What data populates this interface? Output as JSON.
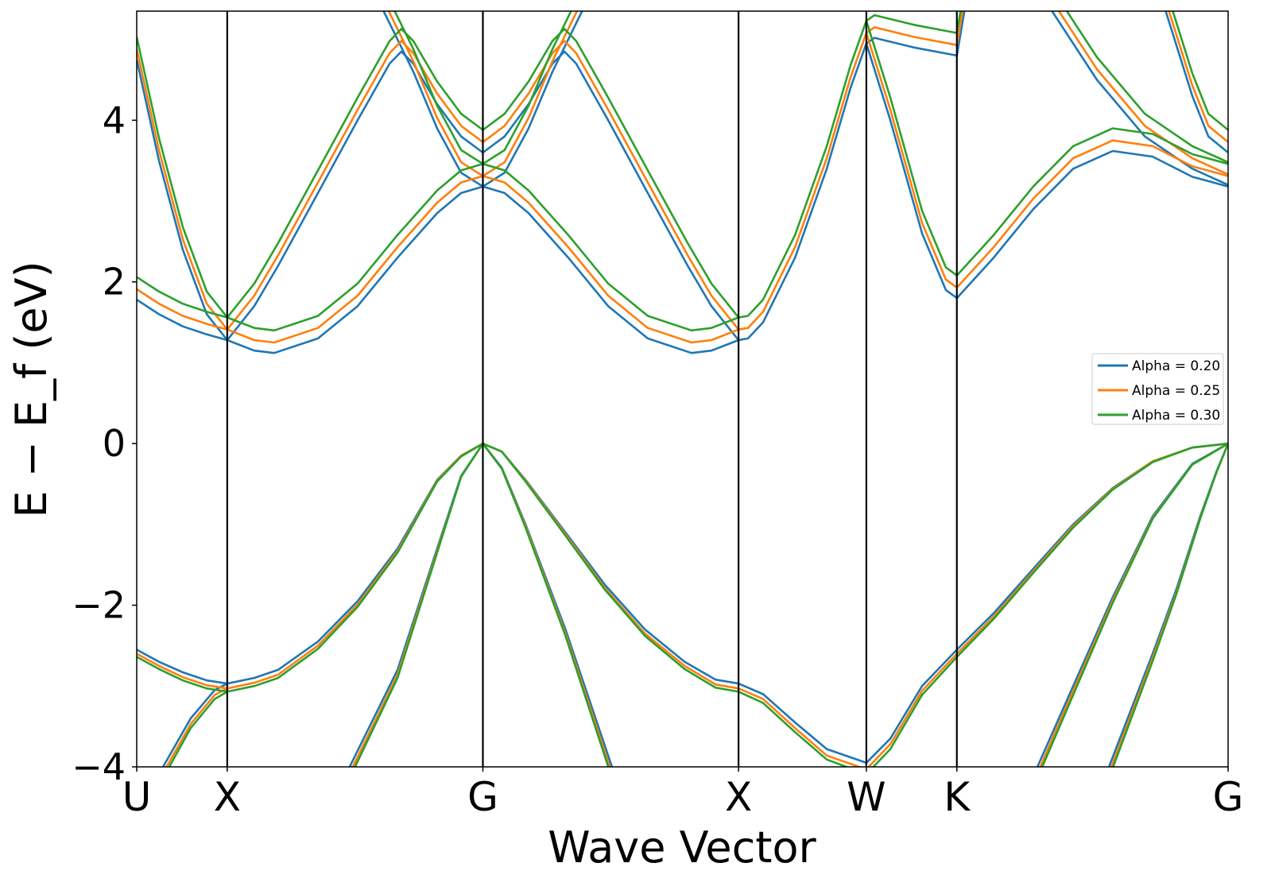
{
  "chart_data": {
    "type": "line",
    "title": "",
    "xlabel": "Wave Vector",
    "ylabel": "E − E_f (eV)",
    "ylim": [
      -4,
      5.35
    ],
    "xlim": [
      0,
      4.269
    ],
    "yticks": [
      -4,
      -2,
      0,
      2,
      4
    ],
    "ytick_labels": [
      "−4",
      "−2",
      "0",
      "2",
      "4"
    ],
    "high_symmetry_points": [
      {
        "label": "U",
        "k": 0
      },
      {
        "label": "X",
        "k": 0.354
      },
      {
        "label": "G",
        "k": 1.354
      },
      {
        "label": "X",
        "k": 2.354
      },
      {
        "label": "W",
        "k": 2.854
      },
      {
        "label": "K",
        "k": 3.208
      },
      {
        "label": "G",
        "k": 4.269
      }
    ],
    "grid": false,
    "legend_position": "center-right",
    "bands_k": {
      "v_heavy": [
        0,
        0.087,
        0.18,
        0.274,
        0.354,
        0.46,
        0.553,
        0.709,
        0.864,
        1.02,
        1.175,
        1.269,
        1.354,
        1.428,
        1.521,
        1.677,
        1.832,
        1.988,
        2.143,
        2.264,
        2.354,
        2.45,
        2.575,
        2.699,
        2.854,
        2.948,
        3.072,
        3.208,
        3.352,
        3.507,
        3.663,
        3.818,
        3.974,
        4.129,
        4.269
      ],
      "v_light_ux": [
        0,
        0.103,
        0.211,
        0.305,
        0.354
      ],
      "v_light_xg": [
        0.833,
        1.02,
        1.175,
        1.269,
        1.354
      ],
      "v_light_gx": [
        1.354,
        1.428,
        1.521,
        1.677,
        1.859
      ],
      "v_kg_a": [
        3.523,
        3.663,
        3.818,
        3.974,
        4.129,
        4.269
      ],
      "v_kg_b": [
        3.803,
        3.974,
        4.067,
        4.16,
        4.223,
        4.269
      ],
      "c_ux_low": [
        0,
        0.087,
        0.18,
        0.274,
        0.354
      ],
      "c_ux_steep": [
        0,
        0.087,
        0.18,
        0.274,
        0.354
      ],
      "c_xg_hump": [
        0.354,
        0.46,
        0.538,
        0.709,
        0.864,
        1.02,
        1.175,
        1.269,
        1.354
      ],
      "c_xg_peak": [
        0.354,
        0.46,
        0.553,
        0.709,
        0.864,
        0.989,
        1.035,
        1.082,
        1.175,
        1.269,
        1.354
      ],
      "c_xg_steep": [
        0.958,
        1.082,
        1.175,
        1.269,
        1.354
      ],
      "c_gx_hump": [
        1.354,
        1.439,
        1.533,
        1.688,
        1.844,
        1.999,
        2.17,
        2.248,
        2.354
      ],
      "c_gx_peak": [
        1.354,
        1.439,
        1.533,
        1.626,
        1.673,
        1.719,
        1.844,
        1.999,
        2.155,
        2.248,
        2.354
      ],
      "c_gx_steep": [
        1.354,
        1.439,
        1.533,
        1.626,
        1.75
      ],
      "c_xw": [
        2.354,
        2.391,
        2.45,
        2.575,
        2.699,
        2.792,
        2.854
      ],
      "c_wk_down": [
        2.854,
        2.948,
        3.072,
        3.165,
        3.208
      ],
      "c_wk_flat": [
        2.854,
        2.886,
        3.041,
        3.208
      ],
      "c_k_up": [
        3.208,
        3.24
      ],
      "c_kg": [
        3.208,
        3.352,
        3.507,
        3.663,
        3.818,
        3.974,
        4.129,
        4.269
      ],
      "c_kg_desc1": [
        3.57,
        3.756,
        3.943,
        4.129,
        4.269
      ],
      "c_kg_desc2": [
        4.02,
        4.129,
        4.192,
        4.269
      ]
    },
    "series": [
      {
        "name": "Alpha = 0.20",
        "color": "#1f77b4",
        "bands": {
          "v_heavy": [
            -2.55,
            -2.7,
            -2.83,
            -2.93,
            -2.97,
            -2.9,
            -2.8,
            -2.45,
            -1.95,
            -1.3,
            -0.45,
            -0.15,
            0,
            -0.1,
            -0.45,
            -1.1,
            -1.75,
            -2.3,
            -2.7,
            -2.92,
            -2.97,
            -3.1,
            -3.45,
            -3.78,
            -3.95,
            -3.65,
            -3.0,
            -2.55,
            -2.1,
            -1.55,
            -1.0,
            -0.55,
            -0.22,
            -0.05,
            0
          ],
          "v_light_ux": [
            -4.5,
            -4,
            -3.4,
            -3.05,
            -2.97
          ],
          "v_light_xg": [
            -4,
            -2.8,
            -1.3,
            -0.4,
            0
          ],
          "v_light_gx": [
            0,
            -0.3,
            -1.0,
            -2.3,
            -4
          ],
          "v_kg_a": [
            -4,
            -3,
            -1.9,
            -0.9,
            -0.25,
            0
          ],
          "v_kg_b": [
            -4,
            -2.6,
            -1.8,
            -0.9,
            -0.35,
            0
          ],
          "c_ux_low": [
            1.78,
            1.6,
            1.45,
            1.35,
            1.28
          ],
          "c_ux_steep": [
            4.75,
            3.5,
            2.4,
            1.6,
            1.28
          ],
          "c_xg_hump": [
            1.28,
            1.15,
            1.12,
            1.3,
            1.7,
            2.3,
            2.85,
            3.1,
            3.18
          ],
          "c_xg_peak": [
            1.28,
            1.7,
            2.2,
            3.1,
            4.0,
            4.7,
            4.85,
            4.7,
            4.2,
            3.8,
            3.6
          ],
          "c_xg_steep": [
            5.4,
            4.6,
            3.9,
            3.35,
            3.18
          ],
          "c_gx_hump": [
            3.18,
            3.1,
            2.85,
            2.3,
            1.7,
            1.3,
            1.12,
            1.15,
            1.28
          ],
          "c_gx_peak": [
            3.6,
            3.8,
            4.2,
            4.7,
            4.85,
            4.7,
            4.0,
            3.1,
            2.2,
            1.7,
            1.28
          ],
          "c_gx_steep": [
            3.18,
            3.35,
            3.9,
            4.6,
            5.4
          ],
          "c_xw": [
            1.28,
            1.3,
            1.5,
            2.3,
            3.4,
            4.4,
            4.95
          ],
          "c_wk_down": [
            4.95,
            4.0,
            2.6,
            1.9,
            1.8
          ],
          "c_wk_flat": [
            4.95,
            5.02,
            4.9,
            4.8
          ],
          "c_k_up": [
            4.8,
            5.4
          ],
          "c_kg": [
            1.8,
            2.3,
            2.9,
            3.4,
            3.62,
            3.55,
            3.3,
            3.18
          ],
          "c_kg_desc1": [
            5.4,
            4.5,
            3.8,
            3.4,
            3.2
          ],
          "c_kg_desc2": [
            5.4,
            4.3,
            3.8,
            3.6
          ]
        }
      },
      {
        "name": "Alpha = 0.25",
        "color": "#ff7f0e",
        "bands": {
          "v_heavy": [
            -2.6,
            -2.75,
            -2.89,
            -2.99,
            -3.03,
            -2.96,
            -2.86,
            -2.5,
            -1.99,
            -1.33,
            -0.46,
            -0.15,
            0,
            -0.1,
            -0.46,
            -1.12,
            -1.79,
            -2.35,
            -2.75,
            -2.98,
            -3.03,
            -3.16,
            -3.52,
            -3.86,
            -4.03,
            -3.72,
            -3.06,
            -2.6,
            -2.14,
            -1.58,
            -1.02,
            -0.56,
            -0.22,
            -0.05,
            0
          ],
          "v_light_ux": [
            -4.59,
            -4.08,
            -3.47,
            -3.11,
            -3.03
          ],
          "v_light_xg": [
            -4.08,
            -2.86,
            -1.33,
            -0.41,
            0
          ],
          "v_light_gx": [
            0,
            -0.31,
            -1.02,
            -2.35,
            -4.08
          ],
          "v_kg_a": [
            -4.08,
            -3.06,
            -1.94,
            -0.92,
            -0.26,
            0
          ],
          "v_kg_b": [
            -4.08,
            -2.65,
            -1.84,
            -0.92,
            -0.36,
            0
          ],
          "c_ux_low": [
            1.91,
            1.73,
            1.58,
            1.48,
            1.41
          ],
          "c_ux_steep": [
            4.88,
            3.63,
            2.53,
            1.73,
            1.41
          ],
          "c_xg_hump": [
            1.41,
            1.28,
            1.25,
            1.43,
            1.83,
            2.43,
            2.98,
            3.23,
            3.31
          ],
          "c_xg_peak": [
            1.41,
            1.83,
            2.33,
            3.23,
            4.13,
            4.83,
            4.98,
            4.83,
            4.33,
            3.93,
            3.73
          ],
          "c_xg_steep": [
            5.53,
            4.73,
            4.03,
            3.48,
            3.31
          ],
          "c_gx_hump": [
            3.31,
            3.23,
            2.98,
            2.43,
            1.83,
            1.43,
            1.25,
            1.28,
            1.41
          ],
          "c_gx_peak": [
            3.73,
            3.93,
            4.33,
            4.83,
            4.98,
            4.83,
            4.13,
            3.23,
            2.33,
            1.83,
            1.41
          ],
          "c_gx_steep": [
            3.31,
            3.48,
            4.03,
            4.73,
            5.53
          ],
          "c_xw": [
            1.41,
            1.43,
            1.63,
            2.43,
            3.53,
            4.53,
            5.08
          ],
          "c_wk_down": [
            5.08,
            4.13,
            2.73,
            2.03,
            1.93
          ],
          "c_wk_flat": [
            5.08,
            5.15,
            5.03,
            4.93
          ],
          "c_k_up": [
            4.93,
            5.53
          ],
          "c_kg": [
            1.93,
            2.43,
            3.03,
            3.53,
            3.75,
            3.68,
            3.43,
            3.31
          ],
          "c_kg_desc1": [
            5.53,
            4.63,
            3.93,
            3.53,
            3.33
          ],
          "c_kg_desc2": [
            5.53,
            4.43,
            3.93,
            3.73
          ]
        }
      },
      {
        "name": "Alpha = 0.30",
        "color": "#2ca02c",
        "bands": {
          "v_heavy": [
            -2.64,
            -2.79,
            -2.93,
            -3.03,
            -3.07,
            -3.0,
            -2.9,
            -2.54,
            -2.02,
            -1.35,
            -0.47,
            -0.16,
            0,
            -0.1,
            -0.47,
            -1.14,
            -1.81,
            -2.38,
            -2.79,
            -3.02,
            -3.07,
            -3.21,
            -3.57,
            -3.91,
            -4.09,
            -3.78,
            -3.11,
            -2.64,
            -2.17,
            -1.6,
            -1.04,
            -0.57,
            -0.23,
            -0.05,
            0
          ],
          "v_light_ux": [
            -4.66,
            -4.14,
            -3.52,
            -3.16,
            -3.07
          ],
          "v_light_xg": [
            -4.14,
            -2.9,
            -1.35,
            -0.41,
            0
          ],
          "v_light_gx": [
            0,
            -0.31,
            -1.04,
            -2.38,
            -4.14
          ],
          "v_kg_a": [
            -4.14,
            -3.11,
            -1.97,
            -0.93,
            -0.26,
            0
          ],
          "v_kg_b": [
            -4.14,
            -2.69,
            -1.86,
            -0.93,
            -0.36,
            0
          ],
          "c_ux_low": [
            2.06,
            1.88,
            1.73,
            1.63,
            1.56
          ],
          "c_ux_steep": [
            5.03,
            3.78,
            2.68,
            1.88,
            1.56
          ],
          "c_xg_hump": [
            1.56,
            1.43,
            1.4,
            1.58,
            1.98,
            2.58,
            3.13,
            3.38,
            3.46
          ],
          "c_xg_peak": [
            1.56,
            1.98,
            2.48,
            3.38,
            4.28,
            4.98,
            5.13,
            4.98,
            4.48,
            4.08,
            3.88
          ],
          "c_xg_steep": [
            5.68,
            4.88,
            4.18,
            3.63,
            3.46
          ],
          "c_gx_hump": [
            3.46,
            3.38,
            3.13,
            2.58,
            1.98,
            1.58,
            1.4,
            1.43,
            1.56
          ],
          "c_gx_peak": [
            3.88,
            4.08,
            4.48,
            4.98,
            5.13,
            4.98,
            4.28,
            3.38,
            2.48,
            1.98,
            1.56
          ],
          "c_gx_steep": [
            3.46,
            3.63,
            4.18,
            4.88,
            5.68
          ],
          "c_xw": [
            1.56,
            1.58,
            1.78,
            2.58,
            3.68,
            4.68,
            5.23
          ],
          "c_wk_down": [
            5.23,
            4.28,
            2.88,
            2.18,
            2.08
          ],
          "c_wk_flat": [
            5.23,
            5.3,
            5.18,
            5.08
          ],
          "c_k_up": [
            5.08,
            5.68
          ],
          "c_kg": [
            2.08,
            2.58,
            3.18,
            3.68,
            3.9,
            3.83,
            3.58,
            3.46
          ],
          "c_kg_desc1": [
            5.68,
            4.78,
            4.08,
            3.68,
            3.48
          ],
          "c_kg_desc2": [
            5.68,
            4.58,
            4.08,
            3.88
          ]
        }
      }
    ]
  }
}
